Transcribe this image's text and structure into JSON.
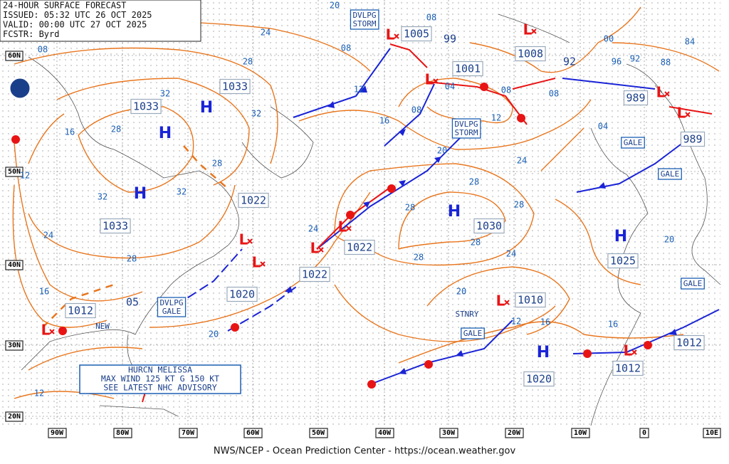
{
  "header": {
    "lines": [
      "24-HOUR SURFACE FORECAST",
      "ISSUED: 05:32 UTC 26 OCT 2025",
      "VALID: 00:00 UTC 27 OCT 2025",
      "FCSTR: Byrd"
    ]
  },
  "lat_labels": [
    "60N",
    "50N",
    "40N",
    "30N",
    "20N"
  ],
  "lon_labels": [
    "90W",
    "80W",
    "70W",
    "60W",
    "50W",
    "40W",
    "30W",
    "20W",
    "10W",
    "0",
    "10E"
  ],
  "highs": [
    "H",
    "H",
    "H",
    "H",
    "H",
    "H"
  ],
  "lows": [
    "L",
    "L",
    "L",
    "L",
    "L",
    "L",
    "L",
    "L",
    "L",
    "L",
    "L",
    "L"
  ],
  "pressure_values": [
    "1033",
    "1033",
    "1033",
    "1022",
    "1022",
    "1022",
    "1020",
    "1012",
    "1030",
    "1025",
    "1010",
    "1020",
    "1012",
    "1012",
    "1005",
    "1001",
    "1008",
    "989",
    "989",
    "99",
    "92",
    "05"
  ],
  "isobar_labels": [
    "24",
    "28",
    "32",
    "32",
    "16",
    "28",
    "32",
    "32",
    "28",
    "24",
    "28",
    "16",
    "20",
    "12",
    "08",
    "12",
    "24",
    "12",
    "16",
    "08",
    "04",
    "08",
    "12",
    "20",
    "24",
    "28",
    "28",
    "28",
    "28",
    "28",
    "24",
    "20",
    "12",
    "16",
    "16",
    "20",
    "08",
    "20",
    "08",
    "00",
    "96",
    "92",
    "88",
    "84",
    "08",
    "04"
  ],
  "warnings": [
    [
      "DVLPG",
      "STORM"
    ],
    [
      "DVLPG",
      "STORM"
    ],
    [
      "DVLPG",
      "GALE"
    ],
    [
      "GALE"
    ],
    [
      "GALE"
    ],
    [
      "GALE"
    ],
    [
      "GALE"
    ]
  ],
  "front_labels": [
    "STNRY",
    "NEW"
  ],
  "hurricane": {
    "lines": [
      "HURCN MELISSA",
      "MAX WIND 125 KT G 150 KT",
      "SEE LATEST NHC ADVISORY"
    ]
  },
  "footer": "NWS/NCEP - Ocean Prediction Center - https://ocean.weather.gov"
}
